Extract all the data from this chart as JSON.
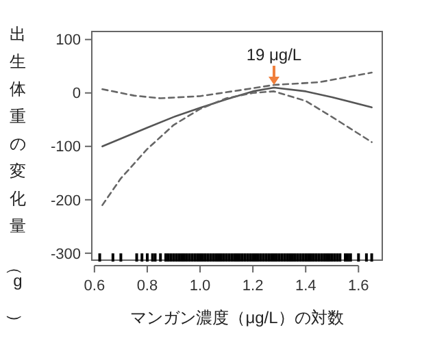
{
  "chart_data": {
    "type": "line",
    "xlabel": "マンガン濃度（μg/L）の対数",
    "ylabel": "出生体重の変化量（g）",
    "xlim": [
      0.59,
      1.69
    ],
    "ylim": [
      -313,
      115
    ],
    "xticks": [
      0.6,
      0.8,
      {
        "value": 1,
        "label": "1.0"
      },
      1.2,
      1.4,
      1.6
    ],
    "yticks": [
      100,
      0,
      -100,
      -200,
      -300
    ],
    "grid": false,
    "annotations": [
      {
        "text": "19 μg/L",
        "x": 1.28,
        "y": 15
      }
    ],
    "series": [
      {
        "color": "#555555",
        "line_style": "solid",
        "x": [
          0.63,
          0.8,
          0.9,
          1.0,
          1.1,
          1.2,
          1.28,
          1.4,
          1.5,
          1.65
        ],
        "values": [
          -100,
          -65,
          -45,
          -28,
          -12,
          3,
          10,
          3,
          -8,
          -27
        ]
      },
      {
        "color": "#666666",
        "line_style": "dashed",
        "x": [
          0.63,
          0.75,
          0.85,
          1.0,
          1.15,
          1.28,
          1.45,
          1.65
        ],
        "values": [
          7,
          -5,
          -10,
          -6,
          5,
          15,
          20,
          38
        ]
      },
      {
        "color": "#666666",
        "line_style": "dashed",
        "x": [
          0.63,
          0.7,
          0.8,
          0.9,
          1.0,
          1.1,
          1.2,
          1.28,
          1.4,
          1.5,
          1.65
        ],
        "values": [
          -210,
          -160,
          -105,
          -60,
          -30,
          -10,
          0,
          3,
          -15,
          -45,
          -92
        ]
      },
      {
        "type": "scatter",
        "color": "#000000",
        "values": [
          -308,
          -308,
          -308,
          -308,
          -308,
          -308,
          -308,
          -308,
          -308,
          -308,
          -308,
          -308,
          -308,
          -308,
          -308,
          -308,
          -308,
          -308,
          -308,
          -308,
          -308,
          -308,
          -308,
          -308,
          -308,
          -308,
          -308,
          -308,
          -308,
          -308,
          -308,
          -308,
          -308,
          -308,
          -308,
          -308,
          -308,
          -308,
          -308,
          -308,
          -308,
          -308,
          -308,
          -308,
          -308,
          -308,
          -308,
          -308,
          -308,
          -308,
          -308,
          -308,
          -308,
          -308,
          -308,
          -308,
          -308,
          -308,
          -308,
          -308,
          -308,
          -308,
          -308,
          -308,
          -308,
          -308,
          -308,
          -308,
          -308,
          -308,
          -308,
          -308,
          -308,
          -308,
          -308,
          -308,
          -308,
          -308,
          -308,
          -308,
          -308,
          -308
        ],
        "x": [
          0.62,
          0.67,
          0.7,
          0.76,
          0.78,
          0.8,
          0.82,
          0.83,
          0.85,
          0.87,
          0.88,
          0.89,
          0.9,
          0.91,
          0.92,
          0.93,
          0.94,
          0.95,
          0.96,
          0.97,
          0.98,
          0.99,
          1.0,
          1.01,
          1.02,
          1.03,
          1.04,
          1.05,
          1.06,
          1.07,
          1.08,
          1.09,
          1.1,
          1.11,
          1.12,
          1.13,
          1.14,
          1.15,
          1.16,
          1.17,
          1.18,
          1.19,
          1.2,
          1.21,
          1.22,
          1.23,
          1.24,
          1.25,
          1.26,
          1.27,
          1.28,
          1.29,
          1.3,
          1.31,
          1.32,
          1.33,
          1.34,
          1.35,
          1.36,
          1.37,
          1.38,
          1.39,
          1.4,
          1.41,
          1.42,
          1.43,
          1.44,
          1.45,
          1.46,
          1.47,
          1.48,
          1.49,
          1.5,
          1.51,
          1.52,
          1.53,
          1.55,
          1.56,
          1.57,
          1.6,
          1.63,
          1.65
        ]
      }
    ]
  }
}
